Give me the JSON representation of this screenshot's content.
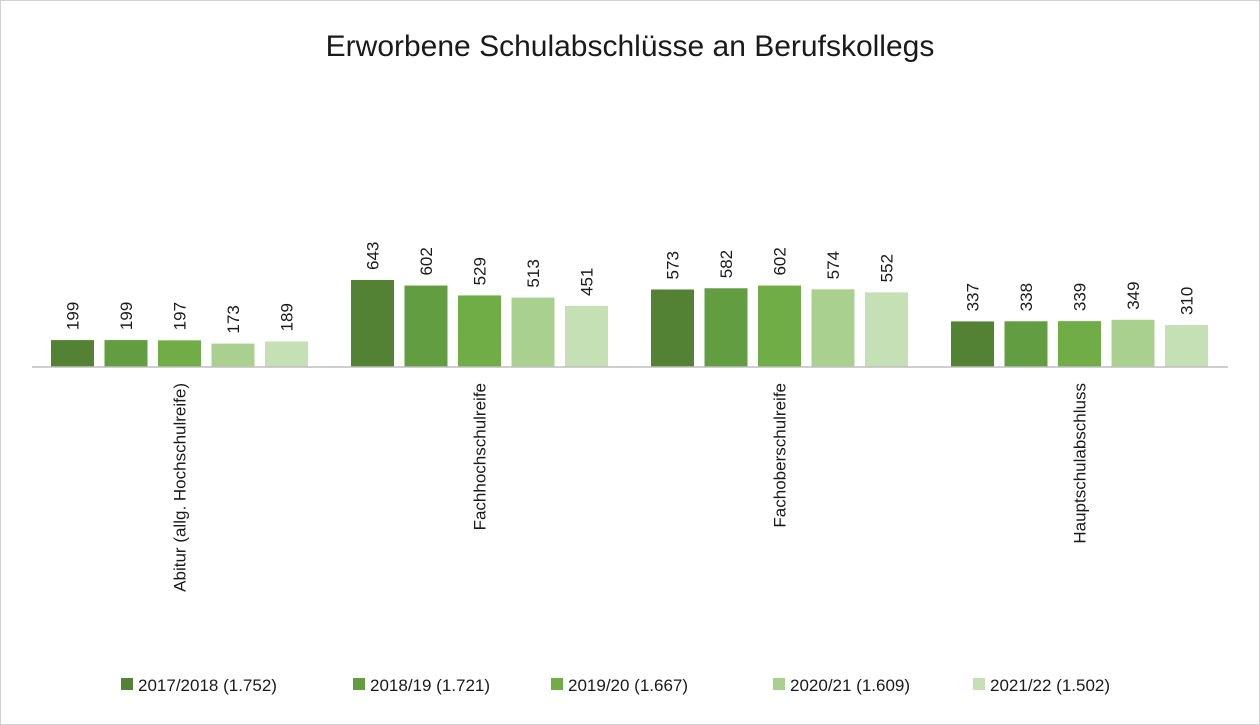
{
  "chart_data": {
    "type": "bar",
    "title": "Erworbene Schulabschlüsse an Berufskollegs",
    "categories": [
      "Abitur (allg. Hochschulreife)",
      "Fachhochschulreife",
      "Fachoberschulreife",
      "Hauptschulabschluss"
    ],
    "series": [
      {
        "name": "2017/2018 (1.752)",
        "values": [
          199,
          643,
          573,
          337
        ],
        "color": "#548235",
        "label_color": "#1a1a1a"
      },
      {
        "name": "2018/19 (1.721)",
        "values": [
          199,
          602,
          582,
          338
        ],
        "color": "#639d41",
        "label_color": "#1a1a1a"
      },
      {
        "name": "2019/20 (1.667)",
        "values": [
          197,
          529,
          602,
          339
        ],
        "color": "#70ad47",
        "label_color": "#1a1a1a"
      },
      {
        "name": "2020/21 (1.609)",
        "values": [
          173,
          513,
          574,
          349
        ],
        "color": "#a9d08e",
        "label_color": "#1a1a1a"
      },
      {
        "name": "2021/22 (1.502)",
        "values": [
          189,
          451,
          552,
          310
        ],
        "color": "#c5e0b4",
        "label_color": "#5a5a5a"
      }
    ],
    "xlabel": "",
    "ylabel": "",
    "ylim": [
      0,
      700
    ],
    "grid": false,
    "legend": "bottom",
    "data_labels": true
  }
}
